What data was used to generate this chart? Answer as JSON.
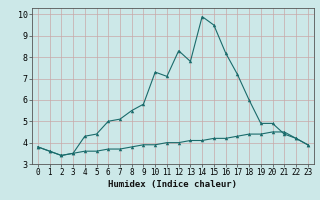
{
  "xlabel": "Humidex (Indice chaleur)",
  "ylabel": "",
  "background_color": "#cce8e8",
  "grid_color": "#b0c8c8",
  "line_color": "#1a6b6b",
  "x": [
    0,
    1,
    2,
    3,
    4,
    5,
    6,
    7,
    8,
    9,
    10,
    11,
    12,
    13,
    14,
    15,
    16,
    17,
    18,
    19,
    20,
    21,
    22,
    23
  ],
  "line1": [
    3.8,
    3.6,
    3.4,
    3.5,
    3.6,
    3.6,
    3.7,
    3.7,
    3.8,
    3.9,
    3.9,
    4.0,
    4.0,
    4.1,
    4.1,
    4.2,
    4.2,
    4.3,
    4.4,
    4.4,
    4.5,
    4.5,
    4.2,
    3.9
  ],
  "line2": [
    3.8,
    3.6,
    3.4,
    3.5,
    4.3,
    4.4,
    5.0,
    5.1,
    5.5,
    5.8,
    7.3,
    7.1,
    8.3,
    7.8,
    9.9,
    9.5,
    8.2,
    7.2,
    6.0,
    4.9,
    4.9,
    4.4,
    4.2,
    3.9
  ],
  "ylim": [
    3.0,
    10.3
  ],
  "xlim": [
    -0.5,
    23.5
  ],
  "yticks": [
    3,
    4,
    5,
    6,
    7,
    8,
    9,
    10
  ],
  "xticks": [
    0,
    1,
    2,
    3,
    4,
    5,
    6,
    7,
    8,
    9,
    10,
    11,
    12,
    13,
    14,
    15,
    16,
    17,
    18,
    19,
    20,
    21,
    22,
    23
  ]
}
